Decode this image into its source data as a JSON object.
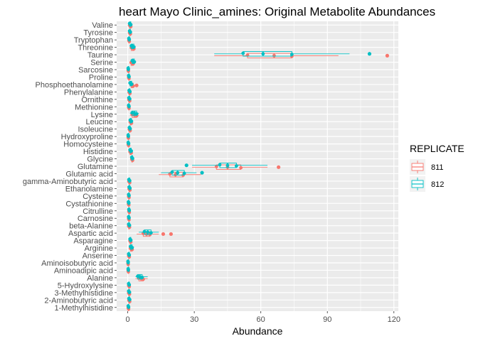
{
  "chart_data": {
    "type": "boxplot",
    "title": "heart Mayo Clinic_amines: Original Metabolite Abundances",
    "xlabel": "Abundance",
    "ylabel": "",
    "xlim": [
      -5,
      122
    ],
    "xticks": [
      0,
      30,
      60,
      90,
      120
    ],
    "orientation": "horizontal",
    "grid": true,
    "legend": {
      "title": "REPLICATE",
      "position": "right"
    },
    "series": [
      {
        "name": "811",
        "color": "#F8766D"
      },
      {
        "name": "812",
        "color": "#00BFC4"
      }
    ],
    "categories": [
      "1-Methylhistidine",
      "2-Aminobutyric acid",
      "3-Methylhistidine",
      "5-Hydroxylysine",
      "Alanine",
      "Aminoadipic acid",
      "Aminoisobutyric acid",
      "Anserine",
      "Arginine",
      "Asparagine",
      "Aspartic acid",
      "beta-Alanine",
      "Carnosine",
      "Citrulline",
      "Cystathionine",
      "Cysteine",
      "Ethanolamine",
      "gamma-Aminobutyric acid",
      "Glutamic acid",
      "Glutamine",
      "Glycine",
      "Histidine",
      "Homocysteine",
      "Hydroxyproline",
      "Isoleucine",
      "Leucine",
      "Lysine",
      "Methionine",
      "Ornithine",
      "Phenylalanine",
      "Phosphoethanolamine",
      "Proline",
      "Sarcosine",
      "Serine",
      "Taurine",
      "Threonine",
      "Tryptophan",
      "Tyrosine",
      "Valine"
    ],
    "boxes": {
      "811": [
        [
          0.1,
          0.2,
          0.3,
          0.4,
          0.5,
          []
        ],
        [
          0.3,
          0.5,
          0.7,
          0.9,
          1.1,
          []
        ],
        [
          0.2,
          0.4,
          0.6,
          0.8,
          1.0,
          []
        ],
        [
          0.2,
          0.4,
          0.5,
          0.7,
          0.9,
          []
        ],
        [
          3.5,
          5.0,
          6.0,
          7.0,
          9.0,
          []
        ],
        [
          0.1,
          0.2,
          0.2,
          0.3,
          0.4,
          []
        ],
        [
          0.1,
          0.1,
          0.2,
          0.2,
          0.3,
          []
        ],
        [
          0.2,
          0.4,
          0.5,
          0.7,
          0.9,
          []
        ],
        [
          0.8,
          1.2,
          1.6,
          2.0,
          2.6,
          []
        ],
        [
          0.8,
          1.0,
          1.2,
          1.4,
          1.6,
          []
        ],
        [
          4.0,
          7.0,
          8.5,
          10.0,
          14.0,
          [
            16.0,
            19.5
          ]
        ],
        [
          0.2,
          0.4,
          0.6,
          0.8,
          1.0,
          []
        ],
        [
          0.2,
          0.4,
          0.5,
          0.6,
          0.8,
          []
        ],
        [
          0.3,
          0.5,
          0.6,
          0.7,
          0.9,
          []
        ],
        [
          0.2,
          0.3,
          0.4,
          0.5,
          0.7,
          []
        ],
        [
          0.2,
          0.4,
          0.5,
          0.6,
          0.8,
          []
        ],
        [
          0.4,
          0.6,
          0.8,
          1.0,
          1.3,
          []
        ],
        [
          0.2,
          0.5,
          0.7,
          0.9,
          1.1,
          []
        ],
        [
          14.0,
          19.0,
          21.5,
          25.0,
          33.0,
          []
        ],
        [
          29.0,
          40.0,
          45.0,
          51.0,
          63.0,
          [
            68.0
          ]
        ],
        [
          1.5,
          1.8,
          2.0,
          2.2,
          2.5,
          []
        ],
        [
          0.5,
          1.0,
          1.3,
          1.6,
          2.2,
          []
        ],
        [
          0.1,
          0.2,
          0.3,
          0.4,
          0.5,
          []
        ],
        [
          0.1,
          0.2,
          0.2,
          0.3,
          0.4,
          []
        ],
        [
          0.4,
          0.7,
          0.9,
          1.1,
          1.4,
          []
        ],
        [
          0.8,
          1.1,
          1.4,
          1.7,
          2.0,
          []
        ],
        [
          1.0,
          2.0,
          3.0,
          4.0,
          5.0,
          []
        ],
        [
          0.2,
          0.4,
          0.5,
          0.6,
          0.8,
          []
        ],
        [
          0.3,
          0.5,
          0.7,
          0.9,
          1.1,
          []
        ],
        [
          0.3,
          0.6,
          0.8,
          1.0,
          1.3,
          []
        ],
        [
          0.8,
          1.5,
          2.0,
          2.5,
          3.5,
          [
            4.0
          ]
        ],
        [
          0.2,
          0.4,
          0.5,
          0.6,
          0.8,
          []
        ],
        [
          0.1,
          0.2,
          0.2,
          0.3,
          0.4,
          []
        ],
        [
          1.0,
          1.5,
          2.0,
          2.5,
          3.0,
          []
        ],
        [
          39.0,
          54.0,
          66.0,
          74.0,
          95.0,
          [
            117.0
          ]
        ],
        [
          1.0,
          1.6,
          2.2,
          2.8,
          3.5,
          []
        ],
        [
          0.3,
          0.5,
          0.6,
          0.7,
          0.9,
          []
        ],
        [
          0.5,
          0.8,
          1.0,
          1.2,
          1.5,
          []
        ],
        [
          0.5,
          0.8,
          1.1,
          1.4,
          1.8,
          []
        ]
      ],
      "812": [
        [
          0.1,
          0.2,
          0.3,
          0.4,
          0.5,
          []
        ],
        [
          0.3,
          0.5,
          0.7,
          0.9,
          1.1,
          []
        ],
        [
          0.2,
          0.4,
          0.6,
          0.8,
          1.0,
          []
        ],
        [
          0.2,
          0.4,
          0.5,
          0.7,
          0.9,
          []
        ],
        [
          3.5,
          4.5,
          5.5,
          6.5,
          9.0,
          []
        ],
        [
          0.1,
          0.2,
          0.2,
          0.3,
          0.4,
          []
        ],
        [
          0.1,
          0.1,
          0.2,
          0.2,
          0.3,
          []
        ],
        [
          0.2,
          0.4,
          0.5,
          0.7,
          0.9,
          []
        ],
        [
          0.8,
          1.2,
          1.6,
          2.0,
          2.8,
          []
        ],
        [
          0.8,
          1.0,
          1.2,
          1.4,
          1.6,
          []
        ],
        [
          5.0,
          7.5,
          9.0,
          10.5,
          14.0,
          []
        ],
        [
          0.2,
          0.4,
          0.6,
          0.8,
          1.0,
          []
        ],
        [
          0.2,
          0.4,
          0.5,
          0.6,
          0.8,
          []
        ],
        [
          0.3,
          0.5,
          0.6,
          0.7,
          0.9,
          []
        ],
        [
          0.2,
          0.3,
          0.4,
          0.5,
          0.7,
          []
        ],
        [
          0.2,
          0.4,
          0.5,
          0.6,
          0.8,
          []
        ],
        [
          0.4,
          0.6,
          0.8,
          1.0,
          1.3,
          []
        ],
        [
          0.2,
          0.5,
          0.7,
          0.9,
          1.1,
          []
        ],
        [
          15.0,
          20.0,
          22.5,
          25.5,
          31.0,
          [
            33.5
          ]
        ],
        [
          29.0,
          41.5,
          45.0,
          49.0,
          63.0,
          [
            26.5
          ]
        ],
        [
          1.5,
          1.8,
          2.0,
          2.2,
          2.5,
          []
        ],
        [
          0.5,
          1.0,
          1.3,
          1.6,
          2.2,
          []
        ],
        [
          0.1,
          0.2,
          0.3,
          0.4,
          0.5,
          []
        ],
        [
          0.1,
          0.2,
          0.2,
          0.3,
          0.4,
          []
        ],
        [
          0.4,
          0.7,
          0.9,
          1.1,
          1.4,
          []
        ],
        [
          0.8,
          1.1,
          1.4,
          1.7,
          2.0,
          []
        ],
        [
          1.0,
          2.0,
          3.0,
          4.0,
          5.0,
          []
        ],
        [
          0.2,
          0.4,
          0.5,
          0.6,
          0.8,
          []
        ],
        [
          0.3,
          0.5,
          0.7,
          0.9,
          1.1,
          []
        ],
        [
          0.3,
          0.6,
          0.8,
          1.0,
          1.3,
          []
        ],
        [
          0.5,
          1.0,
          1.4,
          1.8,
          2.5,
          []
        ],
        [
          0.2,
          0.4,
          0.5,
          0.6,
          0.8,
          []
        ],
        [
          0.1,
          0.2,
          0.2,
          0.3,
          0.4,
          []
        ],
        [
          1.5,
          2.0,
          2.5,
          3.0,
          3.5,
          []
        ],
        [
          39.0,
          52.0,
          61.0,
          74.0,
          100.0,
          [
            109.0
          ]
        ],
        [
          1.0,
          1.6,
          2.2,
          2.8,
          3.5,
          []
        ],
        [
          0.3,
          0.5,
          0.6,
          0.7,
          0.9,
          []
        ],
        [
          0.5,
          0.8,
          1.0,
          1.2,
          1.5,
          []
        ],
        [
          0.5,
          0.8,
          1.1,
          1.4,
          1.8,
          []
        ]
      ]
    }
  }
}
